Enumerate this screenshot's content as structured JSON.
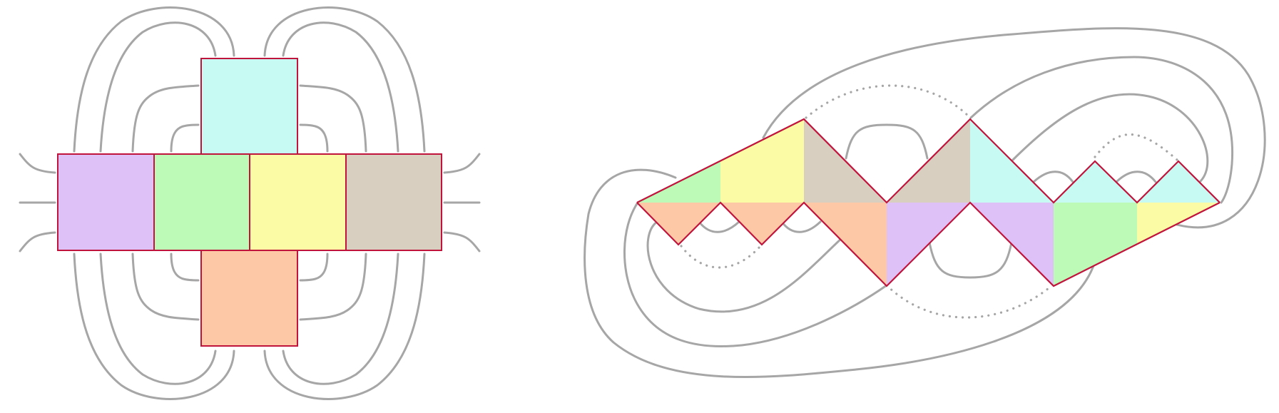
{
  "figure": {
    "colors": {
      "violet": "#dec2f7",
      "green": "#bdfab8",
      "yellow": "#fafba4",
      "taupe": "#d9cfc0",
      "cyan": "#c8faf4",
      "orange": "#fcc8a6",
      "edge": "#c0143c",
      "strand": "#a6a6a6"
    },
    "left_panel": {
      "cells": [
        {
          "id": "top",
          "color": "cyan"
        },
        {
          "id": "row-1",
          "color": "violet"
        },
        {
          "id": "row-2",
          "color": "green"
        },
        {
          "id": "row-3",
          "color": "yellow"
        },
        {
          "id": "row-4",
          "color": "taupe"
        },
        {
          "id": "bottom",
          "color": "orange"
        }
      ]
    },
    "right_panel": {
      "faces": [
        "green",
        "yellow",
        "taupe",
        "taupe",
        "cyan",
        "cyan",
        "cyan",
        "orange",
        "orange",
        "orange",
        "violet",
        "violet",
        "green",
        "yellow"
      ]
    }
  }
}
